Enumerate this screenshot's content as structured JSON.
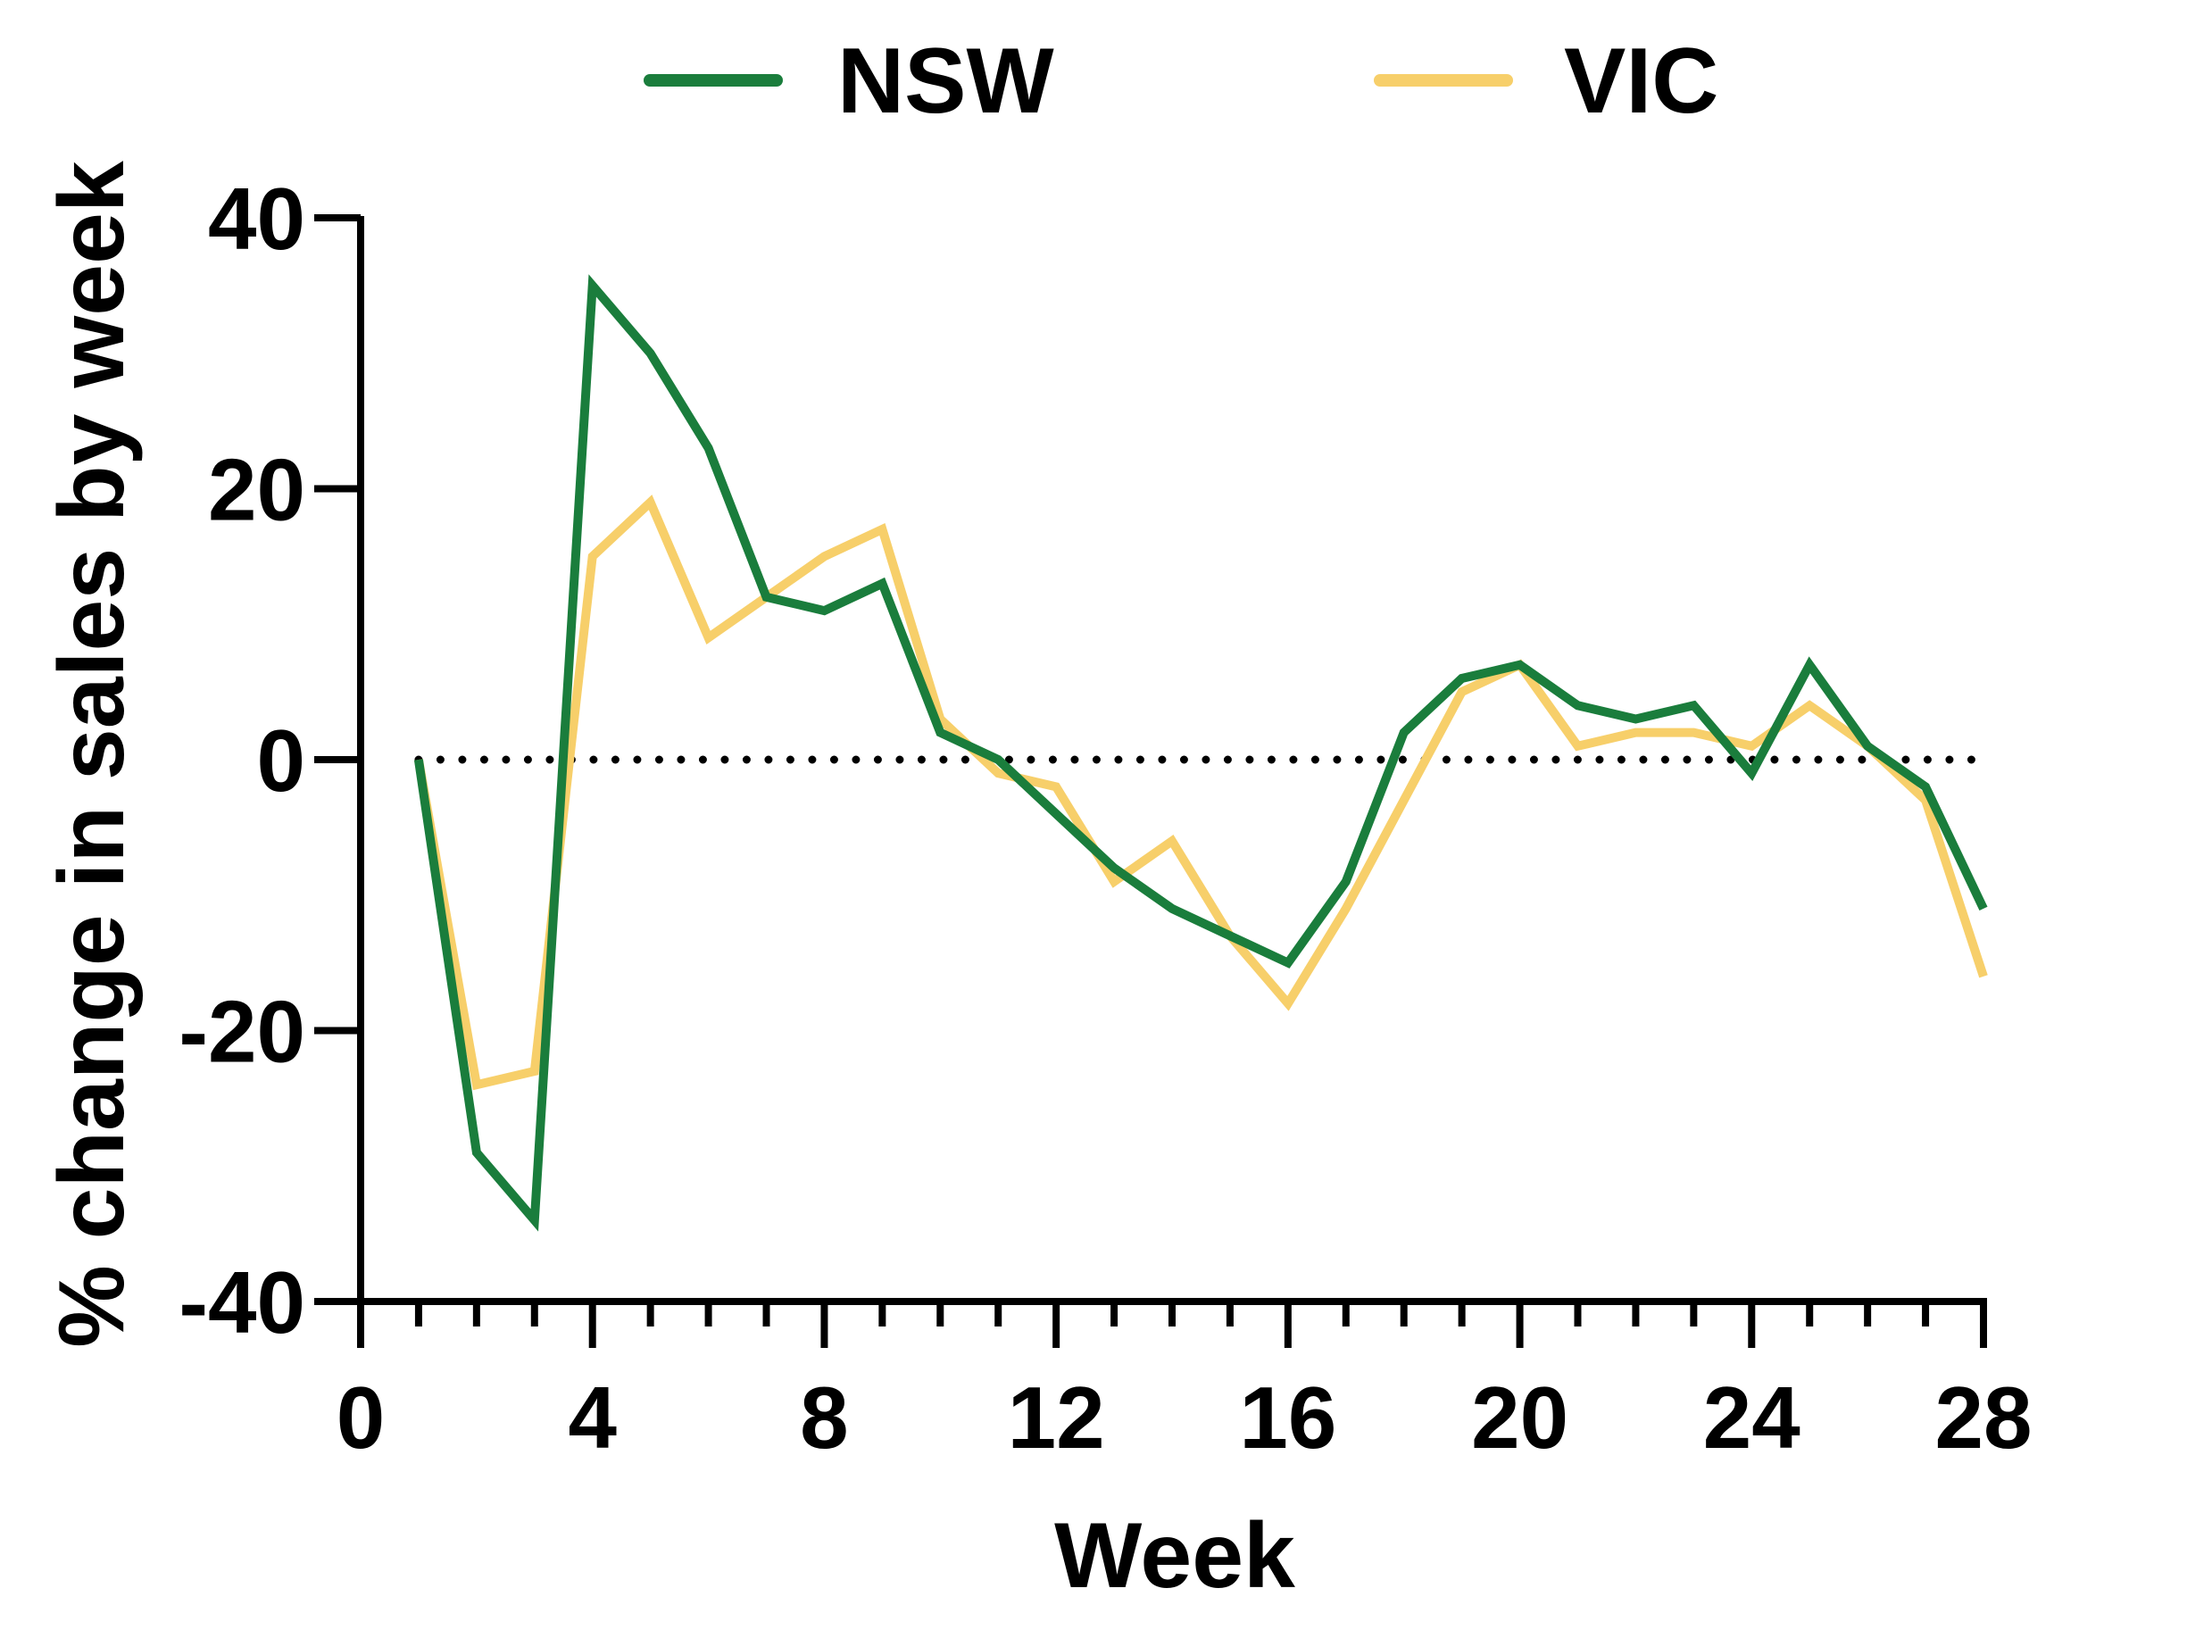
{
  "chart_data": {
    "type": "line",
    "xlabel": "Week",
    "ylabel": "% change in sales by week",
    "xlim": [
      0,
      28
    ],
    "ylim": [
      -40,
      40
    ],
    "xticks": [
      0,
      4,
      8,
      12,
      16,
      20,
      24,
      28
    ],
    "xtick_labels": [
      "0",
      "4",
      "8",
      "12",
      "16",
      "20",
      "24",
      "28"
    ],
    "yticks": [
      -40,
      -20,
      0,
      20,
      40
    ],
    "ytick_labels": [
      "-40",
      "-20",
      "0",
      "20",
      "40"
    ],
    "grid": false,
    "reference_line": {
      "y": 0,
      "style": "dotted"
    },
    "legend_position": "top",
    "x": [
      1,
      2,
      3,
      4,
      5,
      6,
      7,
      8,
      9,
      10,
      11,
      12,
      13,
      14,
      15,
      16,
      17,
      18,
      19,
      20,
      21,
      22,
      23,
      24,
      25,
      26,
      27,
      28
    ],
    "series": [
      {
        "name": "NSW",
        "color": "#1a7d3c",
        "values": [
          0,
          -29,
          -34,
          35,
          30,
          23,
          12,
          11,
          13,
          2,
          0,
          -4,
          -8,
          -11,
          -13,
          -15,
          -9,
          2,
          6,
          7,
          4,
          3,
          4,
          -1,
          7,
          1,
          -2,
          -11
        ]
      },
      {
        "name": "VIC",
        "color": "#f7cf6a",
        "values": [
          0,
          -24,
          -23,
          15,
          19,
          9,
          12,
          15,
          17,
          3,
          -1,
          -2,
          -9,
          -6,
          -13,
          -18,
          -11,
          -3,
          5,
          7,
          1,
          2,
          2,
          1,
          4,
          1,
          -3,
          -16
        ]
      }
    ]
  }
}
